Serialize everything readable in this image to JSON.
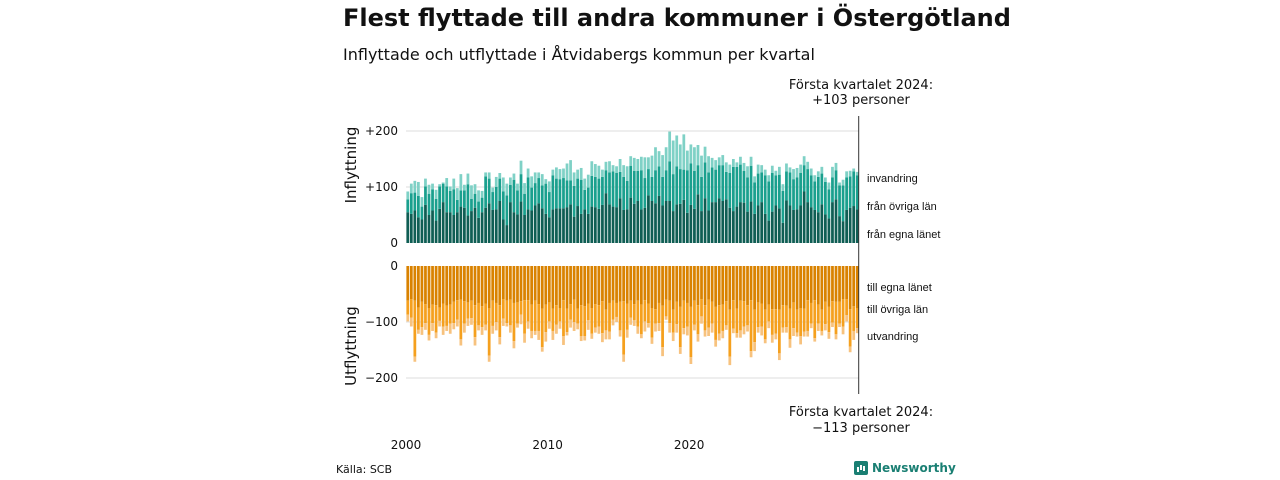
{
  "header": {
    "title": "Flest flyttade till andra kommuner i Östergötland",
    "subtitle": "Inflyttade och utflyttade i Åtvidabergs kommun per kvartal"
  },
  "footer": {
    "source": "Källa: SCB",
    "brand": "Newsworthy"
  },
  "colors": {
    "in_own": "#0f5e54",
    "in_other": "#1aa08e",
    "in_immig": "#7fd1c6",
    "out_own": "#d98200",
    "out_other": "#f5a01e",
    "out_emig": "#f7c27e",
    "grid": "#dddddd",
    "axis": "#333333"
  },
  "chart_data": {
    "type": "bar",
    "x_start": "2000",
    "x_ticks": [
      "2000",
      "2010",
      "2020"
    ],
    "annotation_in": [
      "Första kvartalet 2024:",
      "+103 personer"
    ],
    "annotation_out": [
      "Första kvartalet 2024:",
      "−113 personer"
    ],
    "top_panel": {
      "ylabel": "Inflyttning",
      "yticks": [
        {
          "v": 200,
          "label": "+200"
        },
        {
          "v": 100,
          "label": "+100"
        },
        {
          "v": 0,
          "label": "0"
        }
      ],
      "ylim": [
        0,
        240
      ],
      "series_names": [
        "från egna länet",
        "från övriga län",
        "invandring"
      ],
      "series": [
        {
          "name": "från egna länet",
          "values": [
            55,
            52,
            58,
            46,
            42,
            68,
            50,
            58,
            40,
            61,
            73,
            55,
            55,
            50,
            55,
            65,
            63,
            49,
            57,
            63,
            45,
            55,
            63,
            71,
            59,
            60,
            75,
            42,
            32,
            73,
            55,
            51,
            74,
            50,
            60,
            58,
            67,
            71,
            62,
            52,
            46,
            60,
            62,
            62,
            62,
            64,
            69,
            47,
            66,
            52,
            60,
            52,
            65,
            64,
            61,
            68,
            89,
            69,
            65,
            64,
            80,
            59,
            60,
            81,
            70,
            75,
            60,
            63,
            85,
            75,
            71,
            84,
            67,
            75,
            75,
            57,
            69,
            70,
            77,
            54,
            68,
            61,
            87,
            57,
            80,
            58,
            73,
            73,
            80,
            75,
            78,
            63,
            57,
            65,
            73,
            72,
            56,
            74,
            52,
            67,
            73,
            52,
            40,
            56,
            67,
            62,
            36,
            76,
            67,
            59,
            60,
            67,
            92,
            73,
            64,
            59,
            55,
            69,
            51,
            44,
            73,
            78,
            48,
            39,
            59,
            63,
            66,
            60
          ]
        },
        {
          "name": "från övriga län",
          "values": [
            23,
            37,
            32,
            38,
            23,
            33,
            38,
            38,
            39,
            40,
            33,
            46,
            38,
            46,
            22,
            29,
            31,
            56,
            22,
            25,
            29,
            26,
            56,
            44,
            32,
            40,
            40,
            50,
            53,
            31,
            58,
            43,
            49,
            38,
            57,
            41,
            40,
            45,
            41,
            54,
            45,
            61,
            53,
            52,
            54,
            48,
            43,
            55,
            49,
            61,
            35,
            47,
            55,
            54,
            54,
            50,
            41,
            57,
            63,
            61,
            47,
            59,
            51,
            57,
            59,
            54,
            70,
            53,
            47,
            43,
            59,
            53,
            51,
            55,
            71,
            66,
            68,
            62,
            54,
            76,
            74,
            68,
            52,
            61,
            64,
            68,
            62,
            58,
            59,
            64,
            49,
            62,
            79,
            71,
            67,
            57,
            61,
            64,
            56,
            57,
            53,
            69,
            70,
            69,
            54,
            60,
            57,
            52,
            59,
            55,
            57,
            58,
            47,
            59,
            57,
            51,
            63,
            55,
            58,
            52,
            44,
            52,
            55,
            64,
            58,
            56,
            62,
            61
          ]
        },
        {
          "name": "invandring",
          "values": [
            14,
            17,
            21,
            25,
            17,
            14,
            16,
            10,
            16,
            4,
            2,
            15,
            8,
            19,
            21,
            29,
            10,
            19,
            24,
            17,
            20,
            12,
            7,
            11,
            8,
            18,
            10,
            25,
            21,
            13,
            11,
            12,
            24,
            19,
            16,
            20,
            19,
            10,
            20,
            8,
            19,
            10,
            20,
            18,
            17,
            30,
            36,
            24,
            16,
            21,
            20,
            23,
            26,
            23,
            23,
            13,
            15,
            20,
            11,
            12,
            23,
            21,
            26,
            17,
            23,
            21,
            24,
            37,
            21,
            38,
            41,
            27,
            39,
            41,
            53,
            60,
            55,
            44,
            63,
            35,
            34,
            42,
            36,
            38,
            28,
            29,
            17,
            17,
            14,
            18,
            17,
            15,
            14,
            8,
            14,
            14,
            20,
            16,
            11,
            16,
            13,
            10,
            11,
            13,
            8,
            14,
            12,
            14,
            9,
            18,
            17,
            15,
            16,
            13,
            12,
            11,
            10,
            12,
            8,
            12,
            19,
            13,
            5,
            10,
            11,
            10,
            5,
            6
          ]
        }
      ]
    },
    "bottom_panel": {
      "ylabel": "Utflyttning",
      "yticks": [
        {
          "v": 0,
          "label": "0"
        },
        {
          "v": -100,
          "label": "−100"
        },
        {
          "v": -200,
          "label": "−200"
        }
      ],
      "ylim": [
        -225,
        0
      ],
      "series_names": [
        "till egna länet",
        "till övriga län",
        "utvandring"
      ],
      "series": [
        {
          "name": "till egna länet",
          "values": [
            62,
            59,
            62,
            74,
            64,
            68,
            75,
            69,
            70,
            74,
            67,
            71,
            69,
            64,
            61,
            60,
            63,
            65,
            62,
            70,
            66,
            72,
            67,
            75,
            62,
            66,
            70,
            59,
            62,
            60,
            66,
            65,
            63,
            61,
            61,
            69,
            62,
            68,
            76,
            69,
            65,
            76,
            70,
            75,
            61,
            76,
            68,
            60,
            76,
            70,
            72,
            67,
            75,
            68,
            70,
            63,
            78,
            66,
            62,
            66,
            64,
            63,
            67,
            62,
            68,
            62,
            69,
            61,
            67,
            75,
            77,
            66,
            71,
            60,
            62,
            78,
            64,
            73,
            62,
            66,
            73,
            62,
            70,
            59,
            70,
            60,
            64,
            73,
            70,
            69,
            63,
            78,
            61,
            76,
            62,
            63,
            70,
            61,
            78,
            65,
            67,
            78,
            69,
            77,
            77,
            78,
            70,
            71,
            76,
            65,
            78,
            75,
            76,
            61,
            66,
            61,
            69,
            78,
            64,
            73,
            63,
            64,
            64,
            59,
            59,
            77,
            72,
            75
          ]
        },
        {
          "name": "till övriga län",
          "values": [
            25,
            33,
            100,
            40,
            45,
            34,
            48,
            33,
            49,
            24,
            41,
            36,
            34,
            38,
            35,
            71,
            40,
            29,
            31,
            57,
            40,
            37,
            38,
            85,
            45,
            34,
            57,
            35,
            40,
            46,
            68,
            38,
            24,
            60,
            38,
            47,
            54,
            48,
            69,
            49,
            34,
            40,
            35,
            24,
            64,
            42,
            28,
            40,
            27,
            55,
            53,
            30,
            46,
            42,
            38,
            57,
            37,
            51,
            34,
            25,
            51,
            95,
            47,
            30,
            29,
            46,
            53,
            38,
            35,
            53,
            26,
            36,
            74,
            30,
            40,
            41,
            40,
            72,
            49,
            42,
            90,
            43,
            52,
            31,
            45,
            50,
            39,
            59,
            51,
            47,
            43,
            84,
            51,
            44,
            53,
            45,
            36,
            91,
            58,
            44,
            41,
            53,
            30,
            46,
            44,
            78,
            40,
            38,
            55,
            46,
            41,
            50,
            41,
            55,
            37,
            68,
            34,
            38,
            40,
            45,
            38,
            58,
            39,
            49,
            29,
            67,
            44,
            36
          ]
        },
        {
          "name": "utvandring",
          "values": [
            12,
            16,
            9,
            7,
            14,
            12,
            10,
            14,
            10,
            10,
            15,
            9,
            18,
            11,
            12,
            11,
            16,
            13,
            12,
            15,
            9,
            14,
            10,
            11,
            14,
            15,
            13,
            13,
            6,
            13,
            13,
            7,
            17,
            16,
            13,
            13,
            7,
            16,
            8,
            17,
            13,
            16,
            16,
            13,
            16,
            6,
            14,
            16,
            10,
            9,
            8,
            17,
            9,
            9,
            13,
            16,
            16,
            14,
            10,
            9,
            11,
            13,
            14,
            13,
            10,
            13,
            7,
            18,
            8,
            11,
            14,
            14,
            16,
            6,
            17,
            15,
            15,
            12,
            11,
            16,
            12,
            10,
            13,
            13,
            11,
            15,
            16,
            12,
            12,
            13,
            8,
            15,
            8,
            8,
            13,
            14,
            11,
            11,
            16,
            10,
            16,
            7,
            12,
            14,
            10,
            12,
            9,
            10,
            15,
            14,
            7,
            15,
            9,
            10,
            8,
            6,
            13,
            8,
            11,
            12,
            8,
            9,
            6,
            14,
            11,
            10,
            16,
            9
          ]
        }
      ]
    }
  }
}
